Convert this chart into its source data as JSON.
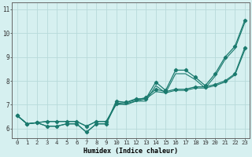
{
  "xlabel": "Humidex (Indice chaleur)",
  "background_color": "#d6f0f0",
  "grid_color": "#b8dada",
  "line_color": "#1a7a6e",
  "xlim": [
    -0.5,
    23.5
  ],
  "ylim": [
    5.6,
    11.3
  ],
  "xticks": [
    0,
    1,
    2,
    3,
    4,
    5,
    6,
    7,
    8,
    9,
    10,
    11,
    12,
    13,
    14,
    15,
    16,
    17,
    18,
    19,
    20,
    21,
    22,
    23
  ],
  "yticks": [
    6,
    7,
    8,
    9,
    10,
    11
  ],
  "lines": [
    [
      6.55,
      6.2,
      6.25,
      6.1,
      6.1,
      6.2,
      6.2,
      5.85,
      6.2,
      6.2,
      7.15,
      7.1,
      7.25,
      7.25,
      7.95,
      7.6,
      8.45,
      8.45,
      8.15,
      7.8,
      8.3,
      9.0,
      9.45,
      10.55
    ],
    [
      6.55,
      6.2,
      6.25,
      6.1,
      6.1,
      6.2,
      6.2,
      5.85,
      6.2,
      6.2,
      7.05,
      7.0,
      7.15,
      7.15,
      7.8,
      7.5,
      8.3,
      8.3,
      8.05,
      7.7,
      8.2,
      8.9,
      9.35,
      10.45
    ],
    [
      6.55,
      6.2,
      6.25,
      6.3,
      6.3,
      6.3,
      6.3,
      6.1,
      6.3,
      6.3,
      7.05,
      7.1,
      7.2,
      7.3,
      7.65,
      7.55,
      7.65,
      7.65,
      7.75,
      7.75,
      7.85,
      8.0,
      8.3,
      9.4
    ],
    [
      6.55,
      6.2,
      6.25,
      6.3,
      6.3,
      6.3,
      6.3,
      6.1,
      6.3,
      6.3,
      7.0,
      7.05,
      7.15,
      7.25,
      7.55,
      7.5,
      7.6,
      7.6,
      7.7,
      7.7,
      7.8,
      7.95,
      8.25,
      9.3
    ]
  ],
  "marker_lines": [
    0,
    2
  ],
  "xlabel_fontsize": 6.0,
  "tick_fontsize": 5.2
}
